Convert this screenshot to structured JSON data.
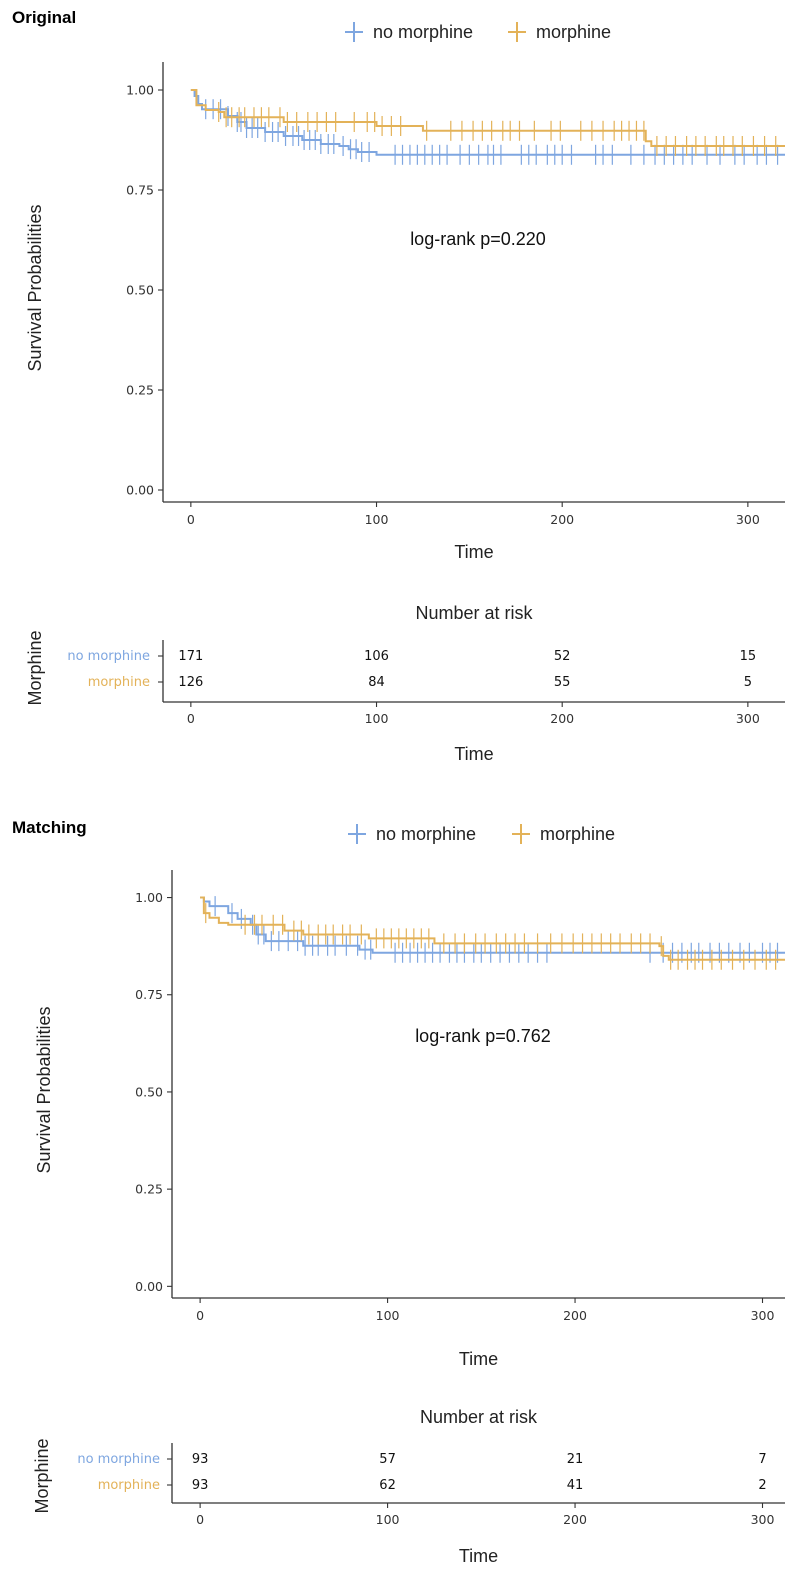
{
  "colors": {
    "no_morphine": "#7ea6e0",
    "morphine": "#e3b258"
  },
  "chart_data": [
    {
      "type": "line",
      "panel_title": "Original",
      "legend": [
        "no morphine",
        "morphine"
      ],
      "legend_position": "top",
      "xlabel": "Time",
      "ylabel": "Survival Probabilities",
      "xlim": [
        -15,
        320
      ],
      "ylim": [
        -0.03,
        1.04
      ],
      "xticks": [
        0,
        100,
        200,
        300
      ],
      "yticks": [
        0.0,
        0.25,
        0.5,
        0.75,
        1.0
      ],
      "ytick_labels": [
        "0.00",
        "0.25",
        "0.50",
        "0.75",
        "1.00"
      ],
      "annotation": "log-rank p=0.220",
      "series": [
        {
          "name": "no morphine",
          "steps": [
            [
              0,
              1.0
            ],
            [
              2,
              0.985
            ],
            [
              4,
              0.965
            ],
            [
              6,
              0.952
            ],
            [
              20,
              0.935
            ],
            [
              25,
              0.92
            ],
            [
              30,
              0.905
            ],
            [
              40,
              0.895
            ],
            [
              50,
              0.885
            ],
            [
              60,
              0.875
            ],
            [
              70,
              0.865
            ],
            [
              80,
              0.86
            ],
            [
              85,
              0.852
            ],
            [
              90,
              0.845
            ],
            [
              100,
              0.838
            ],
            [
              320,
              0.838
            ]
          ],
          "censor_times": [
            8,
            12,
            16,
            20,
            25,
            27,
            30,
            33,
            36,
            40,
            44,
            47,
            51,
            55,
            58,
            61,
            64,
            67,
            70,
            74,
            77,
            82,
            86,
            89,
            92,
            96,
            110,
            114,
            118,
            122,
            126,
            130,
            134,
            138,
            145,
            150,
            155,
            160,
            163,
            167,
            178,
            182,
            186,
            192,
            196,
            200,
            205,
            218,
            222,
            227,
            237,
            244,
            250,
            255,
            260,
            265,
            270,
            278,
            285,
            293,
            298,
            305,
            310,
            316
          ]
        },
        {
          "name": "morphine",
          "steps": [
            [
              0,
              1.0
            ],
            [
              3,
              0.962
            ],
            [
              8,
              0.95
            ],
            [
              15,
              0.945
            ],
            [
              18,
              0.932
            ],
            [
              50,
              0.92
            ],
            [
              100,
              0.91
            ],
            [
              125,
              0.898
            ],
            [
              245,
              0.872
            ],
            [
              248,
              0.86
            ],
            [
              320,
              0.86
            ]
          ],
          "censor_times": [
            15,
            19,
            22,
            26,
            29,
            34,
            38,
            42,
            48,
            52,
            57,
            63,
            68,
            73,
            78,
            88,
            95,
            99,
            103,
            108,
            113,
            127,
            140,
            146,
            152,
            157,
            162,
            168,
            172,
            177,
            185,
            194,
            199,
            210,
            216,
            222,
            228,
            232,
            236,
            240,
            244,
            251,
            256,
            261,
            267,
            272,
            277,
            283,
            287,
            292,
            297,
            303,
            309,
            315
          ]
        }
      ],
      "risk_table": {
        "title": "Number at risk",
        "ylabel": "Morphine",
        "xlabel": "Time",
        "times": [
          0,
          100,
          200,
          300
        ],
        "rows": [
          {
            "group": "no morphine",
            "values": [
              "171",
              "106",
              "52",
              "15"
            ]
          },
          {
            "group": "morphine",
            "values": [
              "126",
              "84",
              "55",
              "5"
            ]
          }
        ]
      }
    },
    {
      "type": "line",
      "panel_title": "Matching",
      "legend": [
        "no morphine",
        "morphine"
      ],
      "legend_position": "top",
      "xlabel": "Time",
      "ylabel": "Survival Probabilities",
      "xlim": [
        -15,
        312
      ],
      "ylim": [
        -0.03,
        1.04
      ],
      "xticks": [
        0,
        100,
        200,
        300
      ],
      "yticks": [
        0.0,
        0.25,
        0.5,
        0.75,
        1.0
      ],
      "ytick_labels": [
        "0.00",
        "0.25",
        "0.50",
        "0.75",
        "1.00"
      ],
      "annotation": "log-rank p=0.762",
      "series": [
        {
          "name": "no morphine",
          "steps": [
            [
              0,
              1.0
            ],
            [
              2,
              0.99
            ],
            [
              5,
              0.978
            ],
            [
              15,
              0.96
            ],
            [
              20,
              0.945
            ],
            [
              27,
              0.93
            ],
            [
              30,
              0.905
            ],
            [
              35,
              0.888
            ],
            [
              55,
              0.876
            ],
            [
              85,
              0.866
            ],
            [
              92,
              0.858
            ],
            [
              312,
              0.858
            ]
          ],
          "censor_times": [
            8,
            17,
            22,
            28,
            31,
            34,
            38,
            42,
            47,
            52,
            56,
            60,
            63,
            68,
            72,
            78,
            84,
            88,
            91,
            104,
            108,
            112,
            116,
            120,
            124,
            128,
            133,
            137,
            141,
            146,
            150,
            155,
            160,
            165,
            170,
            175,
            180,
            185,
            240,
            247,
            252,
            257,
            262,
            266,
            272,
            277,
            282,
            288,
            293,
            300,
            304,
            308
          ]
        },
        {
          "name": "morphine",
          "steps": [
            [
              0,
              1.0
            ],
            [
              2,
              0.96
            ],
            [
              5,
              0.948
            ],
            [
              10,
              0.935
            ],
            [
              15,
              0.93
            ],
            [
              45,
              0.915
            ],
            [
              55,
              0.905
            ],
            [
              90,
              0.895
            ],
            [
              125,
              0.882
            ],
            [
              245,
              0.875
            ],
            [
              247,
              0.85
            ],
            [
              250,
              0.84
            ],
            [
              312,
              0.84
            ]
          ],
          "censor_times": [
            3,
            24,
            29,
            33,
            39,
            44,
            50,
            54,
            58,
            63,
            67,
            71,
            76,
            80,
            86,
            94,
            98,
            102,
            106,
            110,
            114,
            118,
            122,
            130,
            136,
            141,
            147,
            152,
            158,
            163,
            168,
            173,
            180,
            187,
            193,
            199,
            204,
            209,
            214,
            219,
            224,
            230,
            235,
            240,
            246,
            251,
            255,
            260,
            264,
            268,
            273,
            278,
            284,
            290,
            296,
            302,
            307
          ]
        }
      ],
      "risk_table": {
        "title": "Number at risk",
        "ylabel": "Morphine",
        "xlabel": "Time",
        "times": [
          0,
          100,
          200,
          300
        ],
        "rows": [
          {
            "group": "no morphine",
            "values": [
              "93",
              "57",
              "21",
              "7"
            ]
          },
          {
            "group": "morphine",
            "values": [
              "93",
              "62",
              "41",
              "2"
            ]
          }
        ]
      }
    }
  ]
}
